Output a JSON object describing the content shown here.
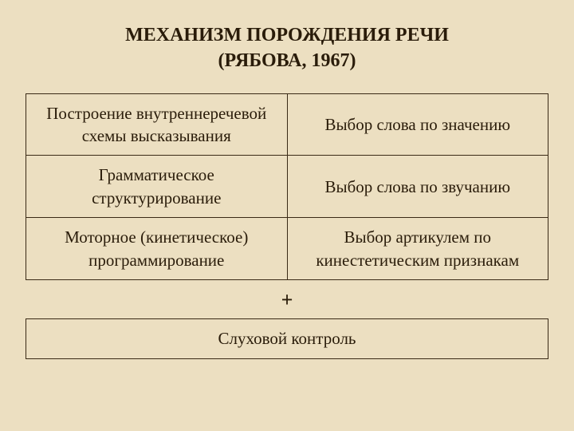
{
  "title": {
    "line1": "МЕХАНИЗМ ПОРОЖДЕНИЯ РЕЧИ",
    "line2": "(РЯБОВА, 1967)",
    "fontsize": 24,
    "fontweight": "bold"
  },
  "table": {
    "type": "table",
    "columns": [
      "left",
      "right"
    ],
    "col_widths": [
      "50%",
      "50%"
    ],
    "border_color": "#3a2a16",
    "border_width": 1.5,
    "cell_fontsize": 21,
    "cell_align": "center",
    "rows": [
      {
        "left": "Построение внутреннеречевой схемы высказывания",
        "right": "Выбор слова по значению"
      },
      {
        "left": "Грамматическое структурирование",
        "right": "Выбор слова по звучанию"
      },
      {
        "left": "Моторное (кинетическое) программирование",
        "right": "Выбор артикулем по кинестетическим признакам"
      }
    ]
  },
  "plus_symbol": "+",
  "footer": {
    "text": "Слуховой контроль",
    "border_color": "#3a2a16",
    "border_width": 1.5,
    "fontsize": 21
  },
  "colors": {
    "background": "#ecdfc1",
    "text": "#2a1c0a",
    "border": "#3a2a16"
  }
}
